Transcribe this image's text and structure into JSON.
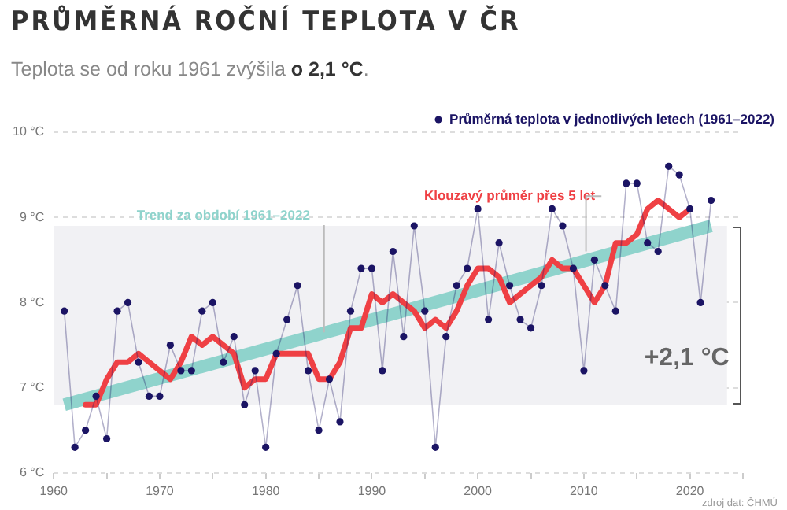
{
  "chart_data": {
    "type": "line",
    "title": "PRŮMĚRNÁ ROČNÍ TEPLOTA V ČR",
    "subtitle": "Teplota se od roku 1961 zvýšila o 2,1 °C.",
    "x": [
      1961,
      1962,
      1963,
      1964,
      1965,
      1966,
      1967,
      1968,
      1969,
      1970,
      1971,
      1972,
      1973,
      1974,
      1975,
      1976,
      1977,
      1978,
      1979,
      1980,
      1981,
      1982,
      1983,
      1984,
      1985,
      1986,
      1987,
      1988,
      1989,
      1990,
      1991,
      1992,
      1993,
      1994,
      1995,
      1996,
      1997,
      1998,
      1999,
      2000,
      2001,
      2002,
      2003,
      2004,
      2005,
      2006,
      2007,
      2008,
      2009,
      2010,
      2011,
      2012,
      2013,
      2014,
      2015,
      2016,
      2017,
      2018,
      2019,
      2020,
      2021,
      2022
    ],
    "series": [
      {
        "name": "Průměrná teplota v jednotlivých letech (1961–2022)",
        "color": "#1b1464",
        "values": [
          7.9,
          6.3,
          6.5,
          6.9,
          6.4,
          7.9,
          8.0,
          7.3,
          6.9,
          6.9,
          7.5,
          7.2,
          7.2,
          7.9,
          8.0,
          7.3,
          7.6,
          6.8,
          7.2,
          6.3,
          7.4,
          7.8,
          8.2,
          7.2,
          6.5,
          7.1,
          6.6,
          7.9,
          8.4,
          8.4,
          7.2,
          8.6,
          7.6,
          8.9,
          7.9,
          6.3,
          7.6,
          8.2,
          8.4,
          9.1,
          7.8,
          8.7,
          8.2,
          7.8,
          7.7,
          8.2,
          9.1,
          8.9,
          8.4,
          7.2,
          8.5,
          8.2,
          7.9,
          9.4,
          9.4,
          8.7,
          8.6,
          9.6,
          9.5,
          9.1,
          8.0,
          9.2
        ]
      },
      {
        "name": "Klouzavý průměr přes 5 let",
        "color": "#ef4044",
        "marker": "none",
        "x": [
          1963,
          1964,
          1965,
          1966,
          1967,
          1968,
          1969,
          1970,
          1971,
          1972,
          1973,
          1974,
          1975,
          1976,
          1977,
          1978,
          1979,
          1980,
          1981,
          1982,
          1983,
          1984,
          1985,
          1986,
          1987,
          1988,
          1989,
          1990,
          1991,
          1992,
          1993,
          1994,
          1995,
          1996,
          1997,
          1998,
          1999,
          2000,
          2001,
          2002,
          2003,
          2004,
          2005,
          2006,
          2007,
          2008,
          2009,
          2010,
          2011,
          2012,
          2013,
          2014,
          2015,
          2016,
          2017,
          2018,
          2019,
          2020
        ],
        "values": [
          6.8,
          6.8,
          7.1,
          7.3,
          7.3,
          7.4,
          7.3,
          7.2,
          7.1,
          7.3,
          7.6,
          7.5,
          7.6,
          7.5,
          7.4,
          7.0,
          7.1,
          7.1,
          7.4,
          7.4,
          7.4,
          7.4,
          7.1,
          7.1,
          7.3,
          7.7,
          7.7,
          8.1,
          8.0,
          8.1,
          8.0,
          7.9,
          7.7,
          7.8,
          7.7,
          7.9,
          8.2,
          8.4,
          8.4,
          8.3,
          8.0,
          8.1,
          8.2,
          8.3,
          8.5,
          8.4,
          8.4,
          8.2,
          8.0,
          8.2,
          8.7,
          8.7,
          8.8,
          9.1,
          9.2,
          9.1,
          9.0,
          9.1
        ]
      },
      {
        "name": "Trend za období 1961–2022",
        "color": "#8fd3cc",
        "marker": "none",
        "x": [
          1961,
          2022
        ],
        "values": [
          6.8,
          8.9
        ]
      }
    ],
    "xlim": [
      1960,
      2025
    ],
    "xticks": [
      1960,
      {
        "value": 1965,
        "label": null
      },
      1970,
      {
        "value": 1975,
        "label": null
      },
      1980,
      {
        "value": 1985,
        "label": null
      },
      1990,
      {
        "value": 1995,
        "label": null
      },
      2000,
      {
        "value": 2005,
        "label": null
      },
      2010,
      {
        "value": 2015,
        "label": null
      },
      2020,
      {
        "value": 2025,
        "label": null
      }
    ],
    "ylim": [
      6,
      10
    ],
    "yticks": [
      {
        "value": 6,
        "label": "6 °C"
      },
      {
        "value": 7,
        "label": "7 °C"
      },
      {
        "value": 8,
        "label": "8 °C"
      },
      {
        "value": 9,
        "label": "9 °C"
      },
      {
        "value": 10,
        "label": "10 °C"
      }
    ],
    "bands": [
      {
        "axis": "y",
        "from": 6.8,
        "to": 8.9,
        "label": "+2,1 °C",
        "color": "#f1f1f4"
      }
    ],
    "grid": "y",
    "legend": "top right",
    "marker": "circle",
    "annotations": [
      "zdroj dat: ČHMÚ"
    ]
  }
}
